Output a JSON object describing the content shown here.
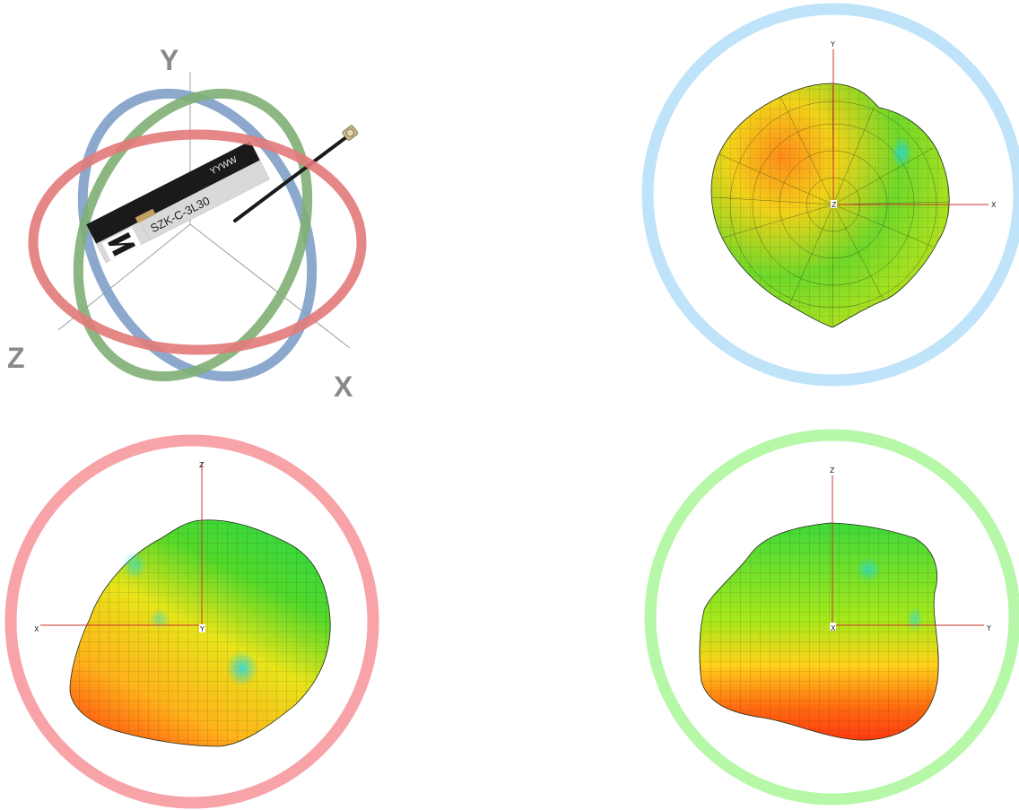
{
  "illustration": {
    "axes": {
      "x": "X",
      "y": "Y",
      "z": "Z"
    },
    "antenna_part_number": "SZK-C-3L30",
    "date_code": "YYWW",
    "ring_colors": {
      "xy_plane": "#e27a7a",
      "yz_plane": "#7f9ec8",
      "xz_plane": "#7fae74"
    }
  },
  "patterns": [
    {
      "ring_color": "#bfe3f9",
      "axis_up": "Y",
      "axis_right": "X",
      "axis_center": "Z"
    },
    {
      "ring_color": "#f7a3a8",
      "axis_up": "Z",
      "axis_left": "X",
      "axis_center": "Y"
    },
    {
      "ring_color": "#b6f7a8",
      "axis_up": "Z",
      "axis_right": "Y",
      "axis_center": "X"
    }
  ]
}
